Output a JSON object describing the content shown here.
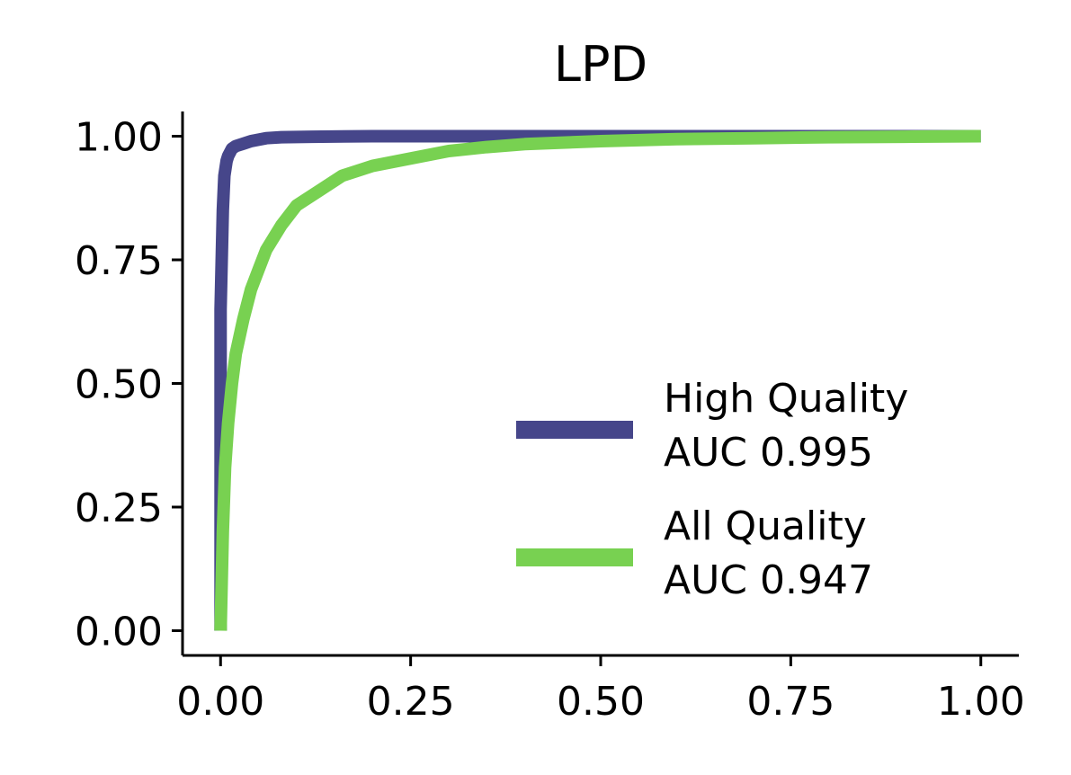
{
  "chart_data": {
    "type": "line",
    "title": "LPD",
    "xlabel": "",
    "ylabel": "",
    "xlim": [
      -0.05,
      1.05
    ],
    "ylim": [
      -0.05,
      1.05
    ],
    "x_ticks": [
      0.0,
      0.25,
      0.5,
      0.75,
      1.0
    ],
    "x_tick_labels": [
      "0.00",
      "0.25",
      "0.50",
      "0.75",
      "1.00"
    ],
    "y_ticks": [
      0.0,
      0.25,
      0.5,
      0.75,
      1.0
    ],
    "y_tick_labels": [
      "0.00",
      "0.25",
      "0.50",
      "0.75",
      "1.00"
    ],
    "grid": false,
    "legend_position": "lower-right",
    "series": [
      {
        "name": "High Quality\nAUC 0.995",
        "name_lines": [
          "High Quality",
          "AUC 0.995"
        ],
        "color": "#46468a",
        "x": [
          0.0,
          0.0,
          0.003,
          0.005,
          0.008,
          0.01,
          0.015,
          0.02,
          0.03,
          0.04,
          0.05,
          0.06,
          0.08,
          0.12,
          0.2,
          0.3,
          0.45,
          0.6,
          1.0
        ],
        "y": [
          0.0,
          0.65,
          0.85,
          0.92,
          0.95,
          0.96,
          0.975,
          0.98,
          0.985,
          0.99,
          0.993,
          0.996,
          0.998,
          0.999,
          1.0,
          1.0,
          1.0,
          1.0,
          1.0
        ]
      },
      {
        "name": "All Quality\nAUC 0.947",
        "name_lines": [
          "All Quality",
          "AUC 0.947"
        ],
        "color": "#78d151",
        "x": [
          0.0,
          0.003,
          0.006,
          0.01,
          0.015,
          0.02,
          0.03,
          0.04,
          0.05,
          0.06,
          0.08,
          0.1,
          0.13,
          0.16,
          0.2,
          0.25,
          0.3,
          0.35,
          0.4,
          0.5,
          0.6,
          0.7,
          0.8,
          0.9,
          1.0
        ],
        "y": [
          0.0,
          0.2,
          0.33,
          0.42,
          0.5,
          0.56,
          0.63,
          0.69,
          0.73,
          0.77,
          0.82,
          0.86,
          0.89,
          0.92,
          0.94,
          0.955,
          0.97,
          0.978,
          0.984,
          0.99,
          0.994,
          0.996,
          0.998,
          0.999,
          1.0
        ]
      }
    ]
  }
}
